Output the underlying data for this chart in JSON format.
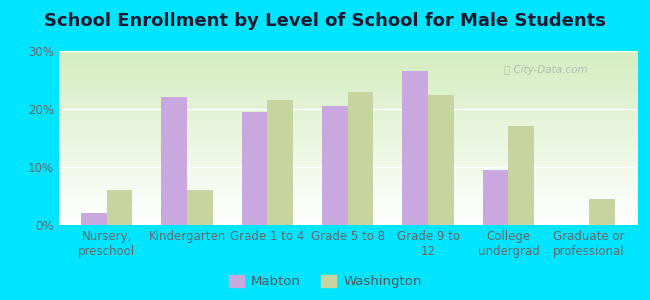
{
  "title": "School Enrollment by Level of School for Male Students",
  "categories": [
    "Nursery,\npreschool",
    "Kindergarten",
    "Grade 1 to 4",
    "Grade 5 to 8",
    "Grade 9 to\n12",
    "College\nundergrad",
    "Graduate or\nprofessional"
  ],
  "mabton_values": [
    2.0,
    22.0,
    19.5,
    20.5,
    26.5,
    9.5,
    0.0
  ],
  "washington_values": [
    6.0,
    6.0,
    21.5,
    23.0,
    22.5,
    17.0,
    4.5
  ],
  "mabton_color": "#c9a8e0",
  "washington_color": "#c8d4a0",
  "background_outer": "#00e5ff",
  "background_top": "#ffffff",
  "background_bottom": "#d4edc0",
  "ylim": [
    0,
    30
  ],
  "yticks": [
    0,
    10,
    20,
    30
  ],
  "ytick_labels": [
    "0%",
    "10%",
    "20%",
    "30%"
  ],
  "legend_labels": [
    "Mabton",
    "Washington"
  ],
  "title_fontsize": 13,
  "tick_fontsize": 8.5,
  "legend_fontsize": 9.5,
  "bar_width": 0.32
}
